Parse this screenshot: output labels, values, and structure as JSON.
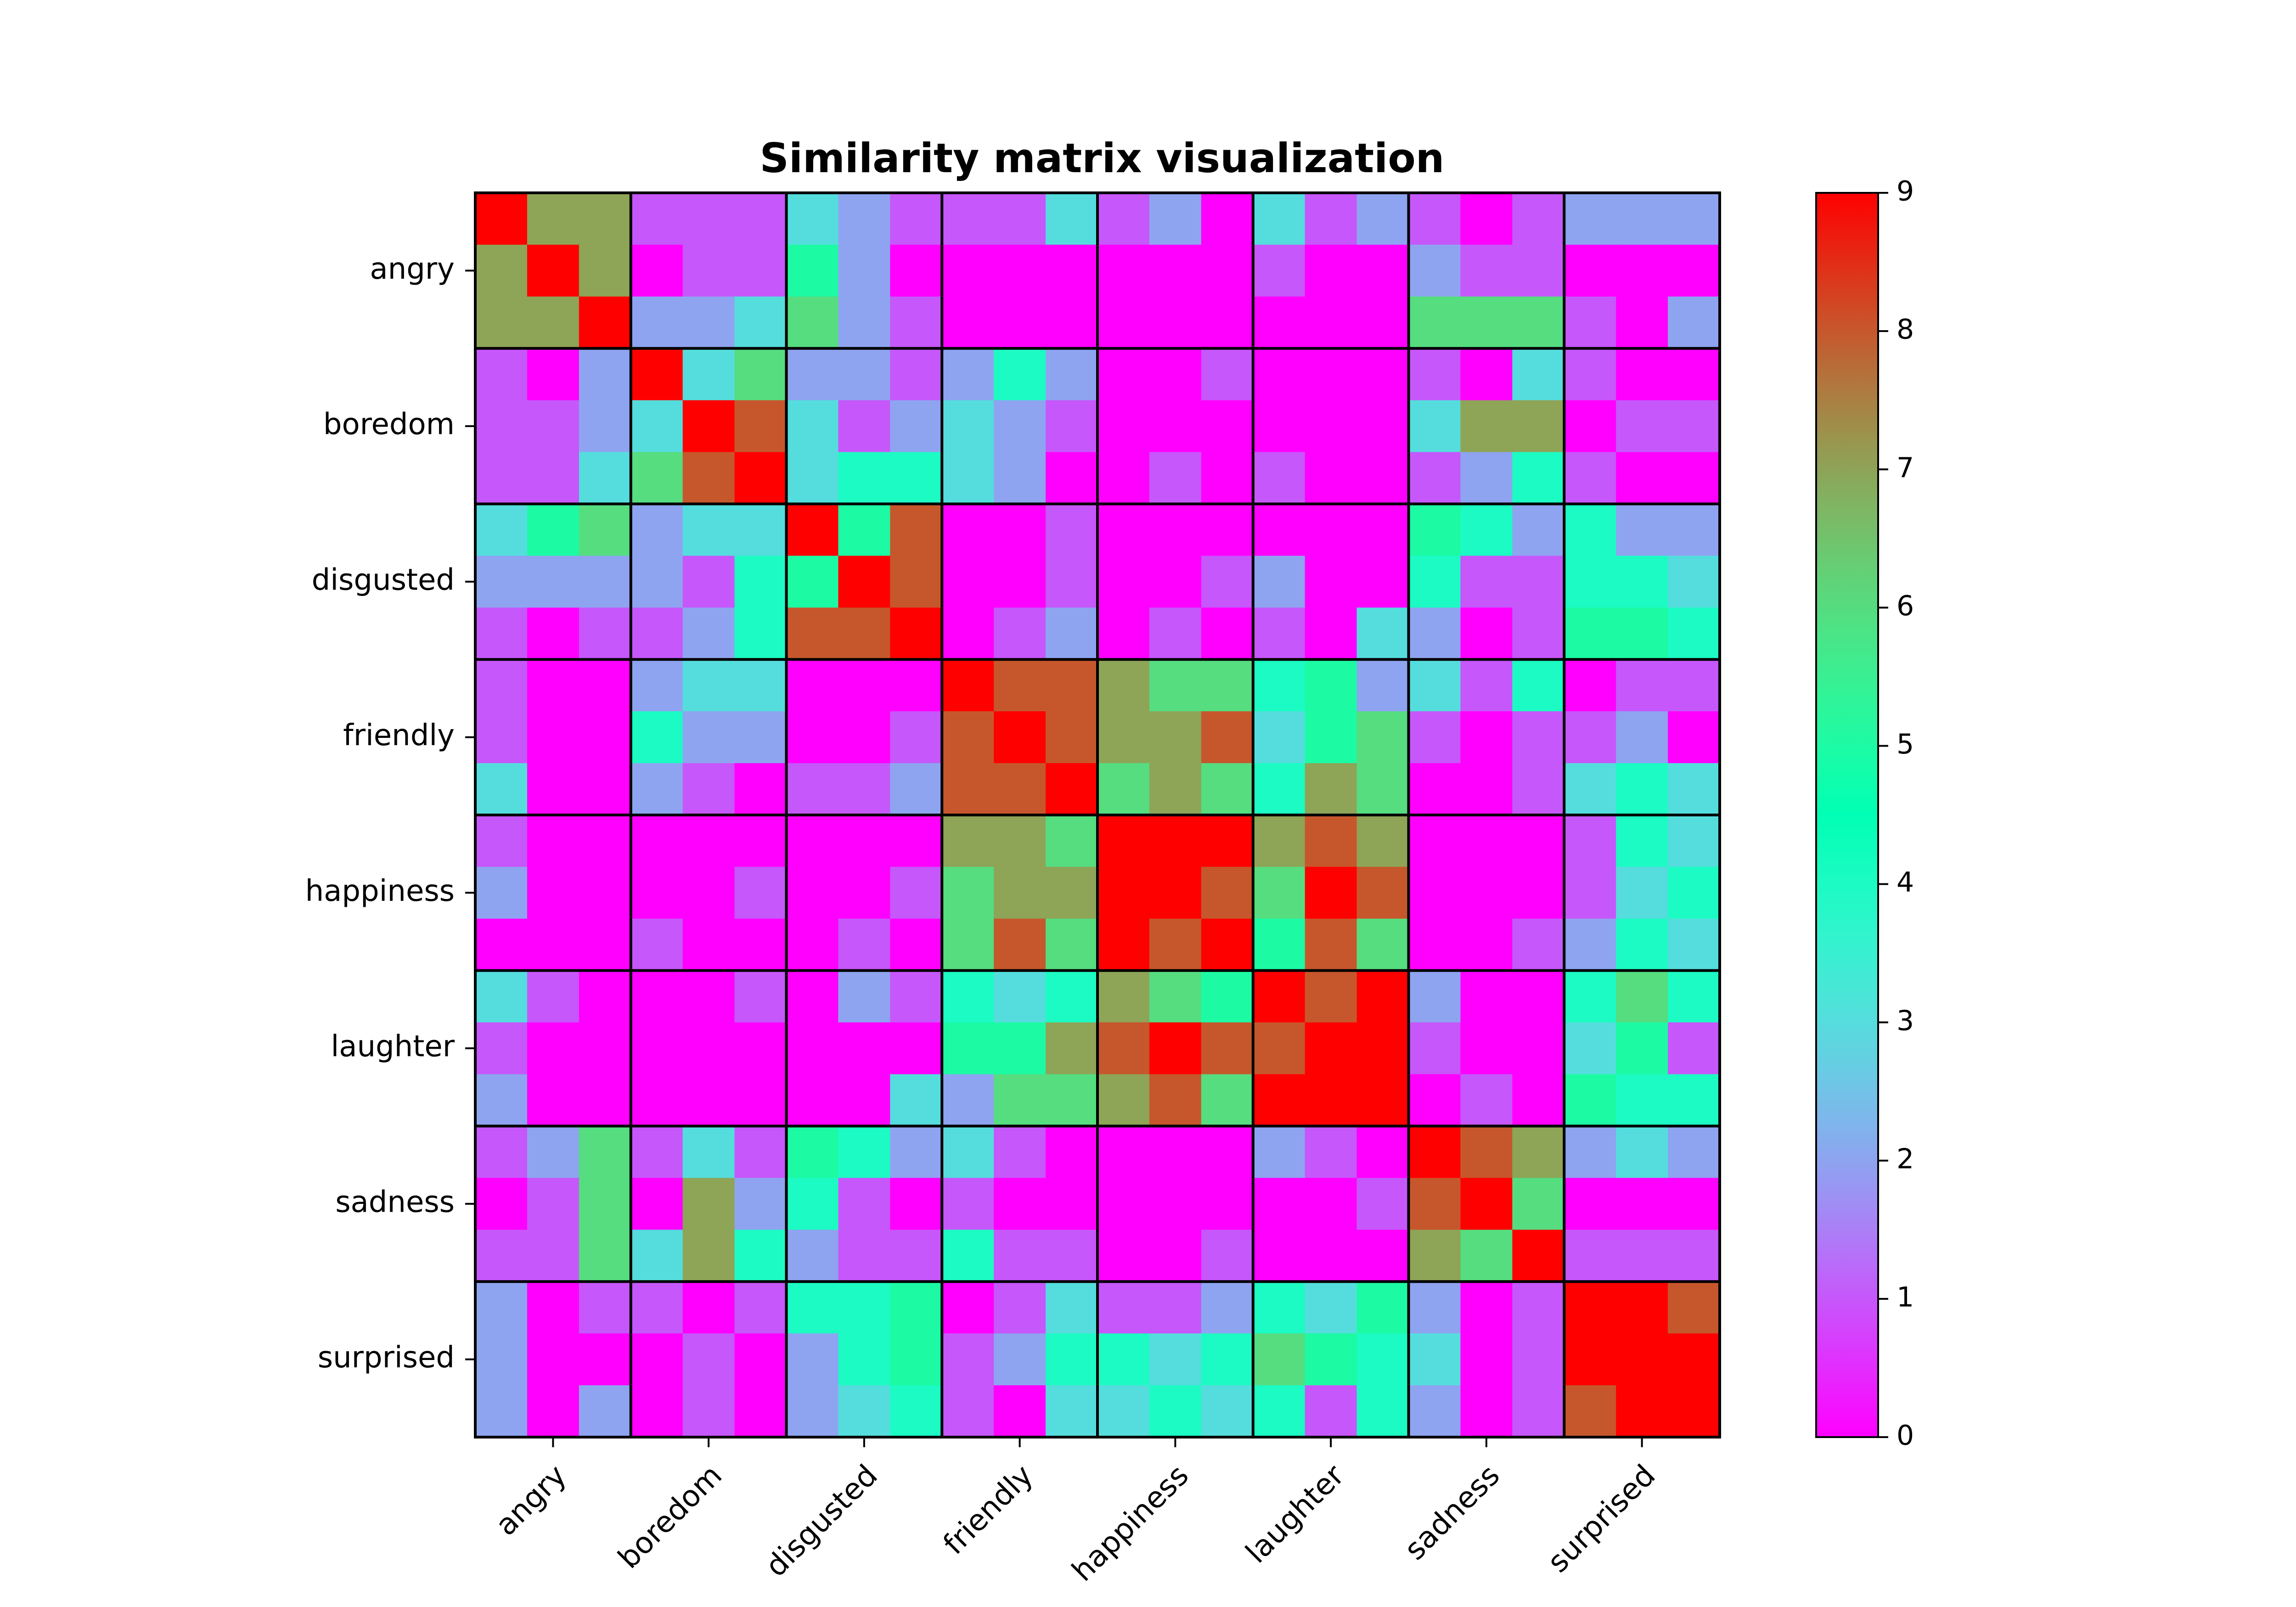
{
  "chart_data": {
    "type": "heatmap",
    "title": "Similarity matrix visualization",
    "labels": [
      "angry",
      "boredom",
      "disgusted",
      "friendly",
      "happiness",
      "laughter",
      "sadness",
      "surprised"
    ],
    "x_tick_labels": [
      "angry",
      "boredom",
      "disgusted",
      "friendly",
      "happiness",
      "laughter",
      "sadness",
      "surprised"
    ],
    "y_tick_labels": [
      "angry",
      "boredom",
      "disgusted",
      "friendly",
      "happiness",
      "laughter",
      "sadness",
      "surprised"
    ],
    "x_tick_rotation_deg": 45,
    "group_size": 3,
    "value_range": [
      0,
      9
    ],
    "colormap": "rainbow",
    "colorbar": {
      "ticks": [
        "0",
        "1",
        "2",
        "3",
        "4",
        "5",
        "6",
        "7",
        "8",
        "9"
      ],
      "placement": "right"
    },
    "matrix": [
      [
        9,
        7,
        7,
        1,
        1,
        1,
        3,
        2,
        1,
        1,
        1,
        3,
        1,
        2,
        0,
        3,
        1,
        2,
        1,
        0,
        1,
        2,
        2,
        2
      ],
      [
        7,
        9,
        7,
        0,
        1,
        1,
        5,
        2,
        0,
        0,
        0,
        0,
        0,
        0,
        0,
        1,
        0,
        0,
        2,
        1,
        1,
        0,
        0,
        0
      ],
      [
        7,
        7,
        9,
        2,
        2,
        3,
        6,
        2,
        1,
        0,
        0,
        0,
        0,
        0,
        0,
        0,
        0,
        0,
        6,
        6,
        6,
        1,
        0,
        2
      ],
      [
        1,
        0,
        2,
        9,
        3,
        6,
        2,
        2,
        1,
        2,
        4,
        2,
        0,
        0,
        1,
        0,
        0,
        0,
        1,
        0,
        3,
        1,
        0,
        0
      ],
      [
        1,
        1,
        2,
        3,
        9,
        8,
        3,
        1,
        2,
        3,
        2,
        1,
        0,
        0,
        0,
        0,
        0,
        0,
        3,
        7,
        7,
        0,
        1,
        1
      ],
      [
        1,
        1,
        3,
        6,
        8,
        9,
        3,
        4,
        4,
        3,
        2,
        0,
        0,
        1,
        0,
        1,
        0,
        0,
        1,
        2,
        4,
        1,
        0,
        0
      ],
      [
        3,
        5,
        6,
        2,
        3,
        3,
        9,
        5,
        8,
        0,
        0,
        1,
        0,
        0,
        0,
        0,
        0,
        0,
        5,
        4,
        2,
        4,
        2,
        2
      ],
      [
        2,
        2,
        2,
        2,
        1,
        4,
        5,
        9,
        8,
        0,
        0,
        1,
        0,
        0,
        1,
        2,
        0,
        0,
        4,
        1,
        1,
        4,
        4,
        3
      ],
      [
        1,
        0,
        1,
        1,
        2,
        4,
        8,
        8,
        9,
        0,
        1,
        2,
        0,
        1,
        0,
        1,
        0,
        3,
        2,
        0,
        1,
        5,
        5,
        4
      ],
      [
        1,
        0,
        0,
        2,
        3,
        3,
        0,
        0,
        0,
        9,
        8,
        8,
        7,
        6,
        6,
        4,
        5,
        2,
        3,
        1,
        4,
        0,
        1,
        1
      ],
      [
        1,
        0,
        0,
        4,
        2,
        2,
        0,
        0,
        1,
        8,
        9,
        8,
        7,
        7,
        8,
        3,
        5,
        6,
        1,
        0,
        1,
        1,
        2,
        0
      ],
      [
        3,
        0,
        0,
        2,
        1,
        0,
        1,
        1,
        2,
        8,
        8,
        9,
        6,
        7,
        6,
        4,
        7,
        6,
        0,
        0,
        1,
        3,
        4,
        3
      ],
      [
        1,
        0,
        0,
        0,
        0,
        0,
        0,
        0,
        0,
        7,
        7,
        6,
        9,
        9,
        9,
        7,
        8,
        7,
        0,
        0,
        0,
        1,
        4,
        3
      ],
      [
        2,
        0,
        0,
        0,
        0,
        1,
        0,
        0,
        1,
        6,
        7,
        7,
        9,
        9,
        8,
        6,
        9,
        8,
        0,
        0,
        0,
        1,
        3,
        4
      ],
      [
        0,
        0,
        0,
        1,
        0,
        0,
        0,
        1,
        0,
        6,
        8,
        6,
        9,
        8,
        9,
        5,
        8,
        6,
        0,
        0,
        1,
        2,
        4,
        3
      ],
      [
        3,
        1,
        0,
        0,
        0,
        1,
        0,
        2,
        1,
        4,
        3,
        4,
        7,
        6,
        5,
        9,
        8,
        9,
        2,
        0,
        0,
        4,
        6,
        4
      ],
      [
        1,
        0,
        0,
        0,
        0,
        0,
        0,
        0,
        0,
        5,
        5,
        7,
        8,
        9,
        8,
        8,
        9,
        9,
        1,
        0,
        0,
        3,
        5,
        1
      ],
      [
        2,
        0,
        0,
        0,
        0,
        0,
        0,
        0,
        3,
        2,
        6,
        6,
        7,
        8,
        6,
        9,
        9,
        9,
        0,
        1,
        0,
        5,
        4,
        4
      ],
      [
        1,
        2,
        6,
        1,
        3,
        1,
        5,
        4,
        2,
        3,
        1,
        0,
        0,
        0,
        0,
        2,
        1,
        0,
        9,
        8,
        7,
        2,
        3,
        2
      ],
      [
        0,
        1,
        6,
        0,
        7,
        2,
        4,
        1,
        0,
        1,
        0,
        0,
        0,
        0,
        0,
        0,
        0,
        1,
        8,
        9,
        6,
        0,
        0,
        0
      ],
      [
        1,
        1,
        6,
        3,
        7,
        4,
        2,
        1,
        1,
        4,
        1,
        1,
        0,
        0,
        1,
        0,
        0,
        0,
        7,
        6,
        9,
        1,
        1,
        1
      ],
      [
        2,
        0,
        1,
        1,
        0,
        1,
        4,
        4,
        5,
        0,
        1,
        3,
        1,
        1,
        2,
        4,
        3,
        5,
        2,
        0,
        1,
        9,
        9,
        8
      ],
      [
        2,
        0,
        0,
        0,
        1,
        0,
        2,
        4,
        5,
        1,
        2,
        4,
        4,
        3,
        4,
        6,
        5,
        4,
        3,
        0,
        1,
        9,
        9,
        9
      ],
      [
        2,
        0,
        2,
        0,
        1,
        0,
        2,
        3,
        4,
        1,
        0,
        3,
        3,
        4,
        3,
        4,
        1,
        4,
        2,
        0,
        1,
        8,
        9,
        9
      ]
    ]
  }
}
